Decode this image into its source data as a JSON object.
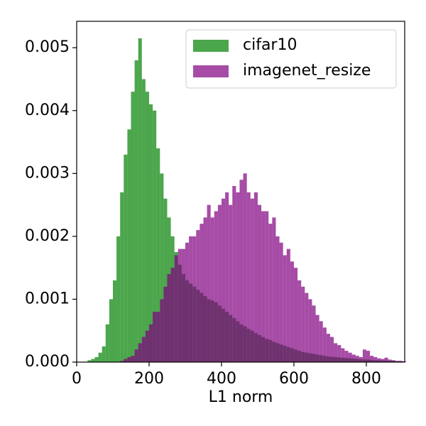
{
  "chart_data": {
    "type": "histogram",
    "xlabel": "L1 norm",
    "bins": [
      30,
      40,
      50,
      60,
      70,
      80,
      90,
      100,
      110,
      120,
      130,
      140,
      150,
      160,
      170,
      180,
      190,
      200,
      210,
      220,
      230,
      240,
      250,
      260,
      270,
      280,
      290,
      300,
      310,
      320,
      330,
      340,
      350,
      360,
      370,
      380,
      390,
      400,
      410,
      420,
      430,
      440,
      450,
      460,
      470,
      480,
      490,
      500,
      510,
      520,
      530,
      540,
      550,
      560,
      570,
      580,
      590,
      600,
      610,
      620,
      630,
      640,
      650,
      660,
      670,
      680,
      690,
      700,
      710,
      720,
      730,
      740,
      750,
      760,
      770,
      780,
      790,
      800,
      810,
      820,
      830,
      840,
      850,
      860,
      870,
      880,
      890,
      900,
      910
    ],
    "series": [
      {
        "name": "cifar10",
        "color": "#008000",
        "alpha": 0.7,
        "values": [
          3e-05,
          5e-05,
          8e-05,
          0.00015,
          0.00025,
          0.0006,
          0.001,
          0.0013,
          0.002,
          0.0027,
          0.0033,
          0.0037,
          0.0043,
          0.0048,
          0.00515,
          0.0045,
          0.0043,
          0.0041,
          0.004,
          0.0034,
          0.003,
          0.0026,
          0.0023,
          0.002,
          0.00175,
          0.00155,
          0.0014,
          0.0013,
          0.00125,
          0.0012,
          0.00115,
          0.0011,
          0.00105,
          0.001,
          0.00098,
          0.00095,
          0.0009,
          0.00085,
          0.0008,
          0.00075,
          0.0007,
          0.00065,
          0.0006,
          0.00057,
          0.00053,
          0.0005,
          0.00046,
          0.00043,
          0.0004,
          0.00037,
          0.00035,
          0.00032,
          0.0003,
          0.00028,
          0.00026,
          0.00024,
          0.00022,
          0.0002,
          0.00018,
          0.00016,
          0.00015,
          0.00014,
          0.00013,
          0.00012,
          0.00011,
          0.0001,
          9e-05,
          8.5e-05,
          8e-05,
          7.5e-05,
          7e-05,
          6.5e-05,
          6e-05,
          5.5e-05,
          5e-05,
          4.5e-05,
          4e-05,
          4e-05,
          3.5e-05,
          3e-05,
          3e-05,
          2.5e-05,
          2.5e-05,
          2e-05,
          2e-05,
          1.5e-05,
          1.5e-05,
          1e-05
        ]
      },
      {
        "name": "imagenet_resize",
        "color": "#800080",
        "alpha": 0.7,
        "values": [
          0,
          0,
          0,
          0,
          0,
          0,
          0,
          0,
          0,
          2e-05,
          5e-05,
          8e-05,
          0.0001,
          0.0002,
          0.0003,
          0.0004,
          0.0005,
          0.0006,
          0.0008,
          0.0008,
          0.001,
          0.0012,
          0.0014,
          0.0015,
          0.0017,
          0.0018,
          0.0018,
          0.0019,
          0.002,
          0.002,
          0.0021,
          0.0022,
          0.0023,
          0.0025,
          0.0023,
          0.0024,
          0.0025,
          0.0026,
          0.0027,
          0.0025,
          0.0028,
          0.0027,
          0.0029,
          0.003,
          0.0027,
          0.0026,
          0.0027,
          0.0025,
          0.0024,
          0.0024,
          0.0022,
          0.0023,
          0.002,
          0.0019,
          0.0017,
          0.0018,
          0.0016,
          0.0015,
          0.0013,
          0.0012,
          0.0011,
          0.001,
          0.0009,
          0.00075,
          0.00065,
          0.00055,
          0.00045,
          0.0004,
          0.0003,
          0.00027,
          0.00022,
          0.00018,
          0.00015,
          0.00012,
          0.0001,
          8e-05,
          0.0002,
          0.00018,
          0.0001,
          8e-05,
          6e-05,
          5e-05,
          7e-05,
          4e-05,
          3e-05,
          2e-05,
          2e-05,
          1e-05
        ]
      }
    ],
    "xlim": [
      0,
      906
    ],
    "xticks": [
      0,
      200,
      400,
      600,
      800
    ],
    "ylim": [
      0,
      0.00542
    ],
    "yticks": [
      {
        "value": 0,
        "label": "0.000"
      },
      {
        "value": 0.001,
        "label": "0.001"
      },
      {
        "value": 0.002,
        "label": "0.002"
      },
      {
        "value": 0.003,
        "label": "0.003"
      },
      {
        "value": 0.004,
        "label": "0.004"
      },
      {
        "value": 0.005,
        "label": "0.005"
      }
    ],
    "legend": "upper right"
  }
}
